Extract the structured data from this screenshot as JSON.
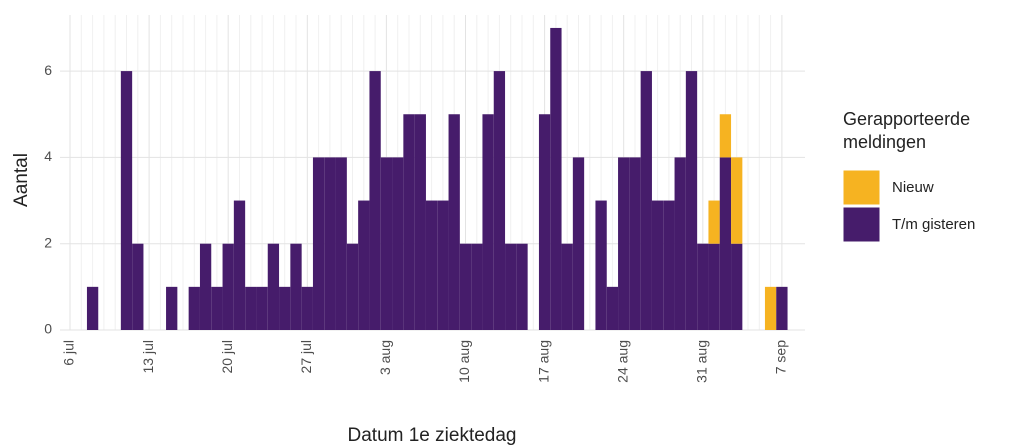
{
  "chart_data": {
    "type": "stacked_bar",
    "x_label": "Datum 1e ziektedag",
    "y_label": "Aantal",
    "legend_title": "Gerapporteerde meldingen",
    "legend_position": "right",
    "grid": true,
    "categories": [
      "6 jul",
      null,
      null,
      null,
      null,
      null,
      null,
      "13 jul",
      null,
      null,
      null,
      null,
      null,
      null,
      "20 jul",
      null,
      null,
      null,
      null,
      null,
      null,
      "27 jul",
      null,
      null,
      null,
      null,
      null,
      null,
      "3 aug",
      null,
      null,
      null,
      null,
      null,
      null,
      "10 aug",
      null,
      null,
      null,
      null,
      null,
      null,
      "17 aug",
      null,
      null,
      null,
      null,
      null,
      null,
      "24 aug",
      null,
      null,
      null,
      null,
      null,
      null,
      "31 aug",
      null,
      null,
      null,
      null,
      null,
      null,
      "7 sep"
    ],
    "series": [
      {
        "name": "T/m gisteren",
        "color": "#461c6b",
        "values": [
          0,
          0,
          1,
          0,
          0,
          6,
          2,
          0,
          0,
          1,
          0,
          1,
          2,
          1,
          2,
          3,
          1,
          1,
          2,
          1,
          2,
          1,
          4,
          4,
          4,
          2,
          3,
          6,
          4,
          4,
          5,
          5,
          3,
          3,
          5,
          2,
          2,
          5,
          6,
          2,
          2,
          0,
          5,
          7,
          2,
          4,
          0,
          3,
          1,
          4,
          4,
          6,
          3,
          3,
          4,
          6,
          2,
          2,
          4,
          2,
          0,
          0,
          0,
          1
        ]
      },
      {
        "name": "Nieuw",
        "color": "#f6b321",
        "values": [
          0,
          0,
          0,
          0,
          0,
          0,
          0,
          0,
          0,
          0,
          0,
          0,
          0,
          0,
          0,
          0,
          0,
          0,
          0,
          0,
          0,
          0,
          0,
          0,
          0,
          0,
          0,
          0,
          0,
          0,
          0,
          0,
          0,
          0,
          0,
          0,
          0,
          0,
          0,
          0,
          0,
          0,
          0,
          0,
          0,
          0,
          0,
          0,
          0,
          0,
          0,
          0,
          0,
          0,
          0,
          0,
          0,
          1,
          1,
          2,
          0,
          0,
          1,
          0
        ]
      }
    ],
    "ylim": [
      0,
      7.3
    ],
    "yticks": [
      0,
      2,
      4,
      6
    ]
  }
}
